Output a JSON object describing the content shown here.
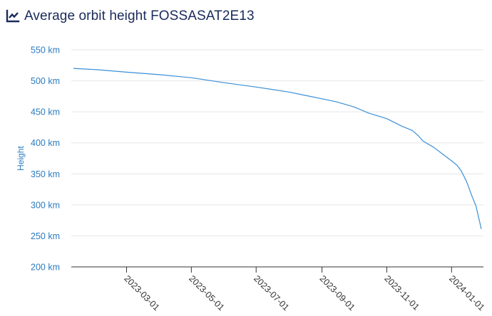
{
  "header": {
    "title": "Average orbit height FOSSASAT2E13",
    "icon": "line-chart-icon"
  },
  "colors": {
    "title": "#1a2a5a",
    "accent": "#2b7bbf",
    "line": "#3a8fd6",
    "grid": "#e6e6e6",
    "axis": "#333333"
  },
  "chart_data": {
    "type": "line",
    "title": "Average orbit height FOSSASAT2E13",
    "xlabel": "",
    "ylabel": "Height",
    "ylim": [
      200,
      550
    ],
    "xlim": [
      "2023-01-08",
      "2024-01-31"
    ],
    "grid": true,
    "y_ticks": [
      {
        "value": 200,
        "label": "200 km"
      },
      {
        "value": 250,
        "label": "250 km"
      },
      {
        "value": 300,
        "label": "300 km"
      },
      {
        "value": 350,
        "label": "350 km"
      },
      {
        "value": 400,
        "label": "400 km"
      },
      {
        "value": 450,
        "label": "450 km"
      },
      {
        "value": 500,
        "label": "500 km"
      },
      {
        "value": 550,
        "label": "550 km"
      }
    ],
    "x_ticks": [
      "2023-03-01",
      "2023-05-01",
      "2023-07-01",
      "2023-09-01",
      "2023-11-01",
      "2024-01-01"
    ],
    "series": [
      {
        "points": [
          [
            "2023-01-10",
            520
          ],
          [
            "2023-02-01",
            518
          ],
          [
            "2023-03-01",
            514
          ],
          [
            "2023-04-01",
            510
          ],
          [
            "2023-05-01",
            505
          ],
          [
            "2023-06-01",
            497
          ],
          [
            "2023-07-01",
            490
          ],
          [
            "2023-08-01",
            482
          ],
          [
            "2023-08-15",
            477
          ],
          [
            "2023-09-01",
            471
          ],
          [
            "2023-09-15",
            466
          ],
          [
            "2023-10-01",
            458
          ],
          [
            "2023-10-15",
            448
          ],
          [
            "2023-11-01",
            439
          ],
          [
            "2023-11-15",
            427
          ],
          [
            "2023-11-25",
            420
          ],
          [
            "2023-12-01",
            411
          ],
          [
            "2023-12-05",
            403
          ],
          [
            "2023-12-15",
            393
          ],
          [
            "2023-12-25",
            380
          ],
          [
            "2024-01-01",
            371
          ],
          [
            "2024-01-06",
            364
          ],
          [
            "2024-01-10",
            355
          ],
          [
            "2024-01-15",
            338
          ],
          [
            "2024-01-20",
            315
          ],
          [
            "2024-01-24",
            298
          ],
          [
            "2024-01-27",
            276
          ],
          [
            "2024-01-29",
            261
          ]
        ]
      }
    ]
  }
}
